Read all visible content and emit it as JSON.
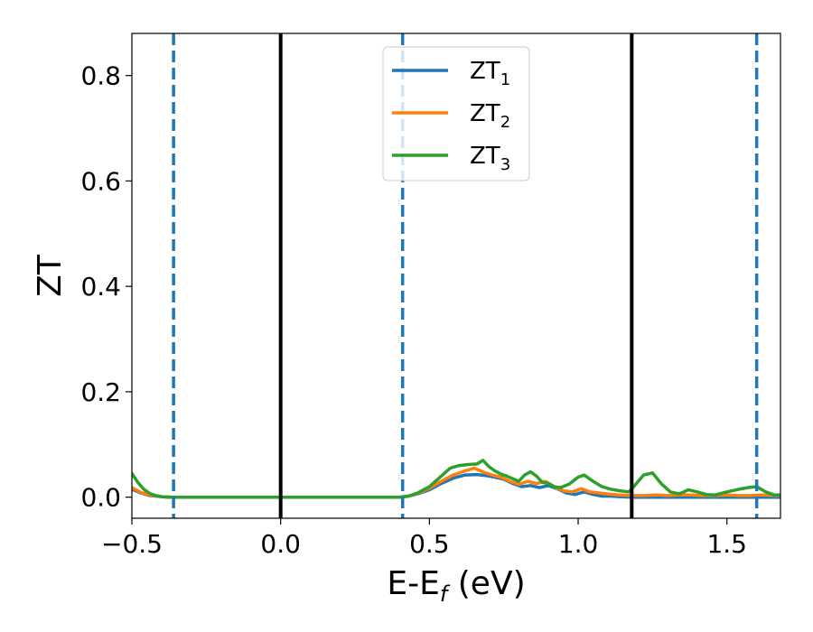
{
  "chart_data": {
    "type": "line",
    "xlabel": "E-E",
    "xlabel_sub": "f",
    "xlabel_unit": " (eV)",
    "ylabel": "ZT",
    "xlim": [
      -0.5,
      1.68
    ],
    "ylim": [
      -0.04,
      0.88
    ],
    "x_ticks": [
      -0.5,
      0.0,
      0.5,
      1.0,
      1.5
    ],
    "x_tick_labels": [
      "−0.5",
      "0.0",
      "0.5",
      "1.0",
      "1.5"
    ],
    "y_ticks": [
      0.0,
      0.2,
      0.4,
      0.6,
      0.8
    ],
    "y_tick_labels": [
      "0.0",
      "0.2",
      "0.4",
      "0.6",
      "0.8"
    ],
    "grid": false,
    "legend_position": "top-center",
    "series": [
      {
        "name": "ZT",
        "sub": "1",
        "color": "#1f77b4",
        "x": [
          -0.5,
          -0.47,
          -0.44,
          -0.4,
          -0.36,
          0.0,
          0.36,
          0.4,
          0.43,
          0.46,
          0.5,
          0.54,
          0.58,
          0.62,
          0.66,
          0.69,
          0.72,
          0.75,
          0.78,
          0.81,
          0.84,
          0.87,
          0.9,
          0.93,
          0.96,
          0.99,
          1.02,
          1.05,
          1.08,
          1.11,
          1.14,
          1.18,
          1.22,
          1.26,
          1.3,
          1.34,
          1.38,
          1.42,
          1.46,
          1.5,
          1.54,
          1.58,
          1.62,
          1.66,
          1.68
        ],
        "y": [
          0.015,
          0.008,
          0.003,
          0.001,
          0.0,
          0.0,
          0.0,
          0.0,
          0.002,
          0.006,
          0.014,
          0.026,
          0.036,
          0.042,
          0.043,
          0.041,
          0.038,
          0.034,
          0.026,
          0.02,
          0.022,
          0.018,
          0.022,
          0.016,
          0.008,
          0.005,
          0.01,
          0.005,
          0.002,
          0.002,
          0.001,
          0.0,
          0.0,
          0.0,
          0.0,
          0.0,
          0.0,
          0.0,
          0.0,
          0.0,
          0.0,
          0.0,
          0.0,
          0.0,
          0.0
        ]
      },
      {
        "name": "ZT",
        "sub": "2",
        "color": "#ff7f0e",
        "x": [
          -0.5,
          -0.47,
          -0.44,
          -0.4,
          -0.36,
          0.0,
          0.36,
          0.4,
          0.43,
          0.46,
          0.5,
          0.54,
          0.58,
          0.62,
          0.65,
          0.68,
          0.71,
          0.74,
          0.77,
          0.8,
          0.83,
          0.86,
          0.89,
          0.92,
          0.95,
          0.98,
          1.01,
          1.04,
          1.07,
          1.1,
          1.14,
          1.18,
          1.22,
          1.26,
          1.3,
          1.34,
          1.38,
          1.42,
          1.46,
          1.5,
          1.54,
          1.58,
          1.62,
          1.66,
          1.68
        ],
        "y": [
          0.018,
          0.009,
          0.004,
          0.001,
          0.0,
          0.0,
          0.0,
          0.0,
          0.002,
          0.007,
          0.017,
          0.03,
          0.042,
          0.05,
          0.055,
          0.048,
          0.042,
          0.038,
          0.03,
          0.024,
          0.03,
          0.026,
          0.03,
          0.02,
          0.012,
          0.01,
          0.016,
          0.01,
          0.008,
          0.006,
          0.004,
          0.003,
          0.003,
          0.004,
          0.003,
          0.004,
          0.004,
          0.003,
          0.003,
          0.004,
          0.003,
          0.003,
          0.004,
          0.003,
          0.003
        ]
      },
      {
        "name": "ZT",
        "sub": "3",
        "color": "#2ca02c",
        "x": [
          -0.5,
          -0.48,
          -0.46,
          -0.44,
          -0.42,
          -0.4,
          -0.38,
          -0.36,
          0.0,
          0.36,
          0.4,
          0.43,
          0.46,
          0.5,
          0.54,
          0.57,
          0.6,
          0.63,
          0.66,
          0.68,
          0.7,
          0.72,
          0.74,
          0.76,
          0.78,
          0.8,
          0.82,
          0.84,
          0.86,
          0.88,
          0.9,
          0.92,
          0.94,
          0.97,
          1.0,
          1.02,
          1.05,
          1.08,
          1.11,
          1.14,
          1.17,
          1.19,
          1.22,
          1.25,
          1.28,
          1.31,
          1.34,
          1.37,
          1.4,
          1.43,
          1.46,
          1.5,
          1.54,
          1.57,
          1.6,
          1.63,
          1.66,
          1.68
        ],
        "y": [
          0.045,
          0.028,
          0.015,
          0.007,
          0.003,
          0.001,
          0.0,
          0.0,
          0.0,
          0.0,
          0.0,
          0.002,
          0.008,
          0.02,
          0.04,
          0.055,
          0.06,
          0.062,
          0.063,
          0.07,
          0.058,
          0.05,
          0.044,
          0.04,
          0.035,
          0.03,
          0.042,
          0.048,
          0.04,
          0.028,
          0.026,
          0.02,
          0.018,
          0.025,
          0.038,
          0.042,
          0.03,
          0.02,
          0.015,
          0.012,
          0.01,
          0.022,
          0.042,
          0.046,
          0.025,
          0.01,
          0.006,
          0.014,
          0.01,
          0.005,
          0.004,
          0.01,
          0.015,
          0.018,
          0.02,
          0.01,
          0.004,
          0.004
        ]
      }
    ],
    "vertical_lines": [
      {
        "x": -0.36,
        "style": "dashed",
        "color": "#1f77b4"
      },
      {
        "x": 0.0,
        "style": "solid",
        "color": "#000000"
      },
      {
        "x": 0.41,
        "style": "dashed",
        "color": "#1f77b4"
      },
      {
        "x": 1.18,
        "style": "solid",
        "color": "#000000"
      },
      {
        "x": 1.6,
        "style": "dashed",
        "color": "#1f77b4"
      }
    ]
  }
}
